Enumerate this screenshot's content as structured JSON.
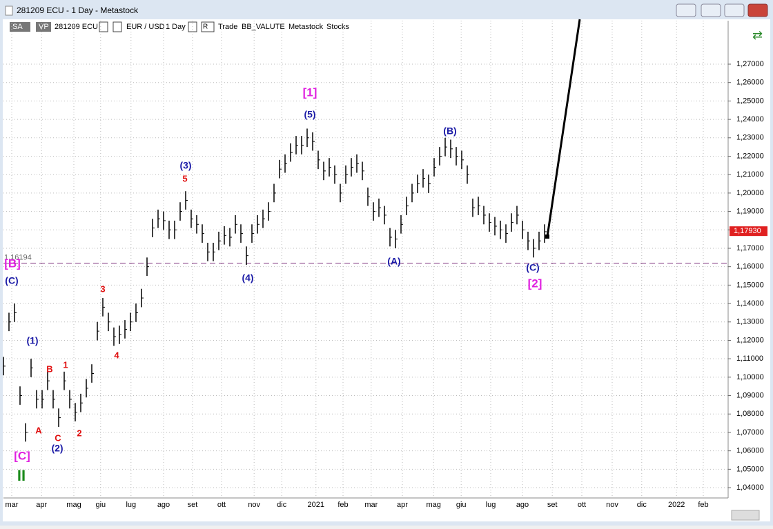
{
  "window": {
    "title": "281209 ECU - 1 Day - Metastock"
  },
  "toolbar": {
    "sa": "SA",
    "vp": "VP",
    "symbol": "281209 ECU",
    "pair": "EUR / USD",
    "period": "1 Day",
    "r": "R",
    "mode": "Trade",
    "group": "BB_VALUTE",
    "source": "Metastock",
    "kind": "Stocks"
  },
  "chart_data": {
    "type": "ohlc",
    "color": "#000000",
    "xlim": [
      0,
      131.25
    ],
    "ylim": [
      1.0344,
      1.2936
    ],
    "grid": true,
    "xticks": [
      {
        "value": 1.5,
        "label": "mar"
      },
      {
        "value": 6.9,
        "label": "apr"
      },
      {
        "value": 12.75,
        "label": "mag"
      },
      {
        "value": 17.6,
        "label": "giu"
      },
      {
        "value": 23.1,
        "label": "lug"
      },
      {
        "value": 29,
        "label": "ago"
      },
      {
        "value": 34.25,
        "label": "set"
      },
      {
        "value": 39.5,
        "label": "ott"
      },
      {
        "value": 45.4,
        "label": "nov"
      },
      {
        "value": 50.4,
        "label": "dic"
      },
      {
        "value": 56.6,
        "label": "2021"
      },
      {
        "value": 61.5,
        "label": "feb"
      },
      {
        "value": 66.6,
        "label": "mar"
      },
      {
        "value": 72.25,
        "label": "apr"
      },
      {
        "value": 77.9,
        "label": "mag"
      },
      {
        "value": 82.9,
        "label": "giu"
      },
      {
        "value": 88.25,
        "label": "lug"
      },
      {
        "value": 94,
        "label": "ago"
      },
      {
        "value": 99.4,
        "label": "set"
      },
      {
        "value": 104.75,
        "label": "ott"
      },
      {
        "value": 110.25,
        "label": "nov"
      },
      {
        "value": 115.6,
        "label": "dic"
      },
      {
        "value": 121.9,
        "label": "2022"
      },
      {
        "value": 126.75,
        "label": "feb"
      }
    ],
    "yticks": [
      {
        "value": 1.04,
        "label": "1,04000"
      },
      {
        "value": 1.05,
        "label": "1,05000"
      },
      {
        "value": 1.06,
        "label": "1,06000"
      },
      {
        "value": 1.07,
        "label": "1,07000"
      },
      {
        "value": 1.08,
        "label": "1,08000"
      },
      {
        "value": 1.09,
        "label": "1,09000"
      },
      {
        "value": 1.1,
        "label": "1,10000"
      },
      {
        "value": 1.11,
        "label": "1,11000"
      },
      {
        "value": 1.12,
        "label": "1,12000"
      },
      {
        "value": 1.13,
        "label": "1,13000"
      },
      {
        "value": 1.14,
        "label": "1,14000"
      },
      {
        "value": 1.15,
        "label": "1,15000"
      },
      {
        "value": 1.16,
        "label": "1,16000"
      },
      {
        "value": 1.17,
        "label": "1,17000"
      },
      {
        "value": 1.18,
        "label": "1,18000"
      },
      {
        "value": 1.19,
        "label": "1,19000"
      },
      {
        "value": 1.2,
        "label": "1,20000"
      },
      {
        "value": 1.21,
        "label": "1,21000"
      },
      {
        "value": 1.22,
        "label": "1,22000"
      },
      {
        "value": 1.23,
        "label": "1,23000"
      },
      {
        "value": 1.24,
        "label": "1,24000"
      },
      {
        "value": 1.25,
        "label": "1,25000"
      },
      {
        "value": 1.26,
        "label": "1,26000"
      },
      {
        "value": 1.27,
        "label": "1,27000"
      }
    ],
    "level": {
      "value": 1.16194,
      "label": "1,16194"
    },
    "last_price": {
      "value": 1.1793,
      "label": "1,17930"
    },
    "high": [
      1.111,
      1.135,
      1.14,
      1.095,
      1.075,
      1.11,
      1.093,
      1.093,
      1.103,
      1.093,
      1.083,
      1.103,
      1.093,
      1.086,
      1.091,
      1.099,
      1.107,
      1.13,
      1.143,
      1.135,
      1.127,
      1.128,
      1.131,
      1.135,
      1.14,
      1.148,
      1.165,
      1.186,
      1.191,
      1.19,
      1.185,
      1.185,
      1.195,
      1.201,
      1.191,
      1.188,
      1.183,
      1.173,
      1.173,
      1.179,
      1.182,
      1.181,
      1.188,
      1.183,
      1.171,
      1.183,
      1.188,
      1.191,
      1.195,
      1.205,
      1.218,
      1.221,
      1.227,
      1.231,
      1.231,
      1.235,
      1.233,
      1.223,
      1.217,
      1.219,
      1.215,
      1.205,
      1.215,
      1.219,
      1.221,
      1.217,
      1.203,
      1.195,
      1.197,
      1.193,
      1.181,
      1.18,
      1.188,
      1.198,
      1.205,
      1.21,
      1.213,
      1.21,
      1.219,
      1.225,
      1.23,
      1.229,
      1.225,
      1.223,
      1.215,
      1.197,
      1.198,
      1.193,
      1.189,
      1.187,
      1.185,
      1.183,
      1.189,
      1.193,
      1.185,
      1.179,
      1.175,
      1.179,
      1.183
    ],
    "low": [
      1.101,
      1.125,
      1.13,
      1.085,
      1.065,
      1.1,
      1.083,
      1.083,
      1.093,
      1.083,
      1.073,
      1.093,
      1.083,
      1.076,
      1.081,
      1.089,
      1.097,
      1.12,
      1.133,
      1.125,
      1.117,
      1.118,
      1.121,
      1.125,
      1.13,
      1.138,
      1.155,
      1.176,
      1.181,
      1.18,
      1.175,
      1.175,
      1.185,
      1.191,
      1.181,
      1.178,
      1.173,
      1.163,
      1.163,
      1.169,
      1.172,
      1.171,
      1.178,
      1.173,
      1.161,
      1.173,
      1.178,
      1.181,
      1.185,
      1.195,
      1.208,
      1.211,
      1.217,
      1.221,
      1.221,
      1.225,
      1.223,
      1.213,
      1.207,
      1.209,
      1.205,
      1.195,
      1.205,
      1.209,
      1.211,
      1.207,
      1.193,
      1.185,
      1.187,
      1.183,
      1.171,
      1.17,
      1.178,
      1.188,
      1.195,
      1.2,
      1.203,
      1.2,
      1.209,
      1.215,
      1.22,
      1.219,
      1.215,
      1.213,
      1.205,
      1.187,
      1.188,
      1.183,
      1.179,
      1.177,
      1.175,
      1.173,
      1.179,
      1.183,
      1.175,
      1.169,
      1.165,
      1.169,
      1.173
    ],
    "close": [
      1.106,
      1.13,
      1.135,
      1.09,
      1.07,
      1.105,
      1.088,
      1.088,
      1.098,
      1.088,
      1.078,
      1.098,
      1.088,
      1.081,
      1.086,
      1.094,
      1.102,
      1.125,
      1.138,
      1.13,
      1.122,
      1.123,
      1.126,
      1.13,
      1.135,
      1.143,
      1.16,
      1.181,
      1.186,
      1.185,
      1.18,
      1.18,
      1.19,
      1.196,
      1.186,
      1.183,
      1.178,
      1.168,
      1.168,
      1.174,
      1.177,
      1.176,
      1.183,
      1.178,
      1.166,
      1.178,
      1.183,
      1.186,
      1.19,
      1.2,
      1.213,
      1.216,
      1.222,
      1.226,
      1.226,
      1.23,
      1.228,
      1.218,
      1.212,
      1.214,
      1.21,
      1.2,
      1.21,
      1.214,
      1.216,
      1.212,
      1.198,
      1.19,
      1.192,
      1.188,
      1.176,
      1.175,
      1.183,
      1.193,
      1.2,
      1.205,
      1.208,
      1.205,
      1.214,
      1.22,
      1.225,
      1.224,
      1.22,
      1.218,
      1.21,
      1.192,
      1.193,
      1.188,
      1.184,
      1.182,
      1.18,
      1.178,
      1.184,
      1.188,
      1.18,
      1.174,
      1.17,
      1.174,
      1.179
    ],
    "annotations": [
      "[B]",
      "(C)",
      "(1)",
      "[C]",
      "(2)",
      "II",
      "A",
      "B",
      "C",
      "1",
      "2",
      "3",
      "4",
      "5",
      "(3)",
      "(4)",
      "[1]",
      "(5)",
      "(B)",
      "(A)",
      "(C)",
      "[2]"
    ]
  }
}
